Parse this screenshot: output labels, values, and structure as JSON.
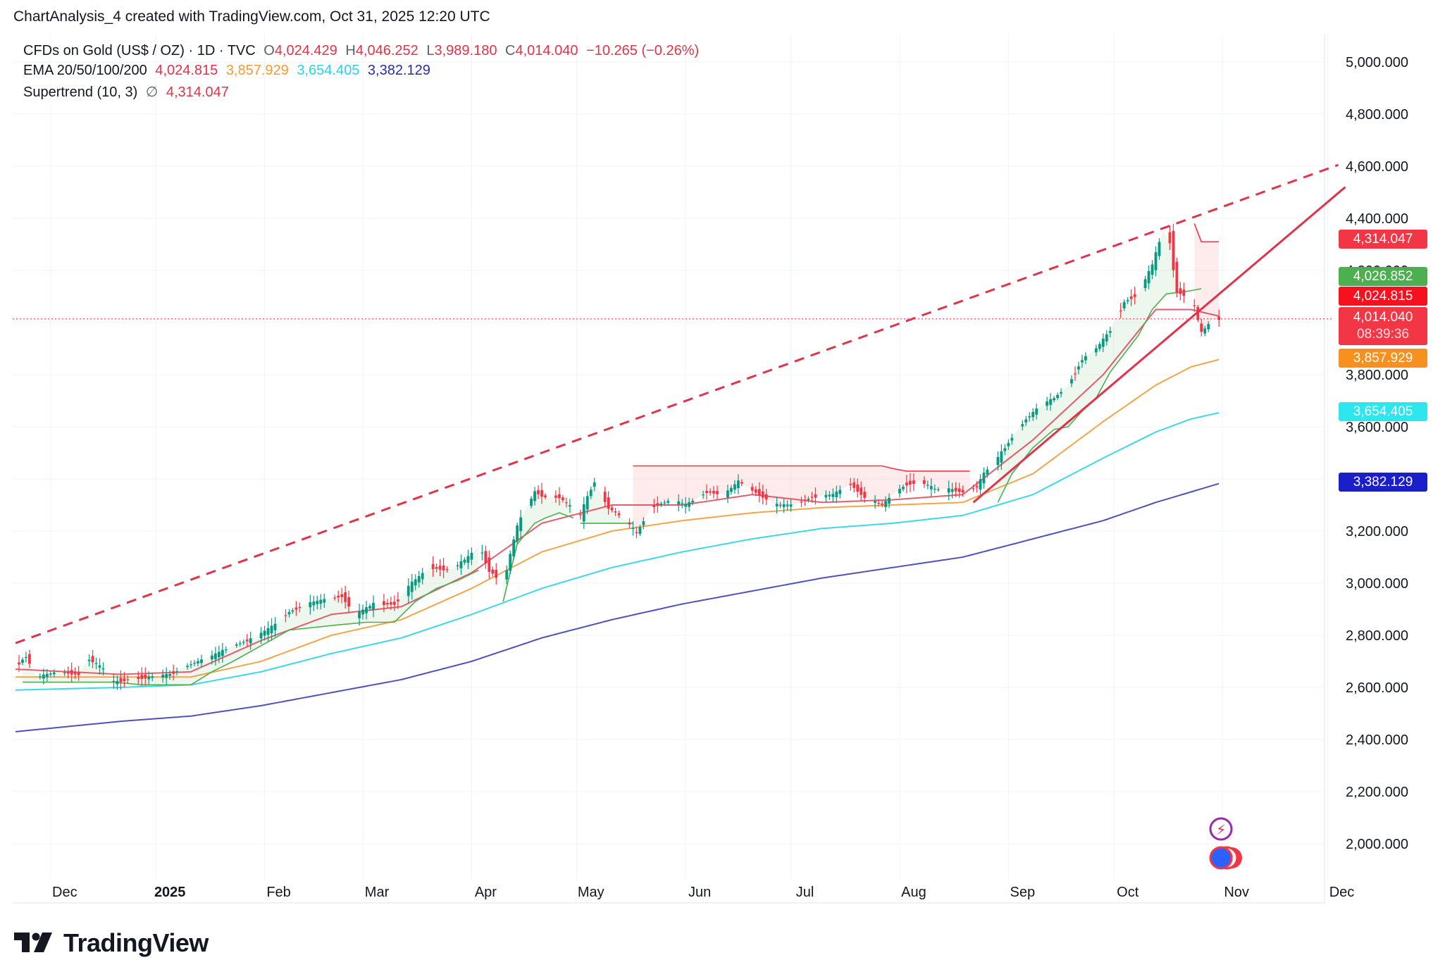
{
  "attribution": "ChartAnalysis_4 created with TradingView.com, Oct 31, 2025 12:20 UTC",
  "legend": {
    "symbol": "CFDs on Gold (US$ / OZ) · 1D · TVC",
    "open_label": "O",
    "open": "4,024.429",
    "high_label": "H",
    "high": "4,046.252",
    "low_label": "L",
    "low": "3,989.180",
    "close_label": "C",
    "close": "4,014.040",
    "change": "−10.265 (−0.26%)",
    "ema_label": "EMA 20/50/100/200",
    "ema20": "4,024.815",
    "ema50": "3,857.929",
    "ema100": "3,654.405",
    "ema200": "3,382.129",
    "supertrend_label": "Supertrend (10, 3)",
    "supertrend_icon": "∅",
    "supertrend_value": "4,314.047"
  },
  "price_badges": {
    "supertrend": "4,314.047",
    "ema20_upper": "4,026.852",
    "ema20": "4,024.815",
    "last_price": "4,014.040",
    "countdown": "08:39:36",
    "ema50": "3,857.929",
    "ema100": "3,654.405",
    "ema200": "3,382.129"
  },
  "colors": {
    "up": "#089981",
    "down": "#f23645",
    "ema20": "#e0344a",
    "ema50": "#f39b36",
    "ema100": "#28d4e4",
    "ema200": "#3b3fb5",
    "supertrend_up": "#4caf50",
    "supertrend_down": "#f23645"
  },
  "logo": {
    "text": "TradingView"
  },
  "chart_data": {
    "type": "candlestick",
    "title": "CFDs on Gold (US$ / OZ) · 1D · TVC",
    "ylim": [
      1850,
      5100
    ],
    "y_ticks": [
      "5,000.000",
      "4,800.000",
      "4,600.000",
      "4,400.000",
      "4,200.000",
      "4,000.000",
      "3,800.000",
      "3,600.000",
      "3,400.000",
      "3,200.000",
      "3,000.000",
      "2,800.000",
      "2,600.000",
      "2,400.000",
      "2,200.000",
      "2,000.000"
    ],
    "y_tick_values": [
      5000,
      4800,
      4600,
      4400,
      4200,
      4000,
      3800,
      3600,
      3400,
      3200,
      3000,
      2800,
      2600,
      2400,
      2200,
      2000
    ],
    "x_range_days": [
      0,
      375
    ],
    "x_ticks": [
      {
        "label": "Dec",
        "day": 10
      },
      {
        "label": "2025",
        "day": 40
      },
      {
        "label": "Feb",
        "day": 71
      },
      {
        "label": "Mar",
        "day": 99
      },
      {
        "label": "Apr",
        "day": 130
      },
      {
        "label": "May",
        "day": 160
      },
      {
        "label": "Jun",
        "day": 191
      },
      {
        "label": "Jul",
        "day": 221
      },
      {
        "label": "Aug",
        "day": 252
      },
      {
        "label": "Sep",
        "day": 283
      },
      {
        "label": "Oct",
        "day": 313
      },
      {
        "label": "Nov",
        "day": 344
      },
      {
        "label": "Dec",
        "day": 374
      }
    ],
    "price_anchors": [
      [
        0,
        2680
      ],
      [
        3,
        2720
      ],
      [
        6,
        2640
      ],
      [
        12,
        2660
      ],
      [
        18,
        2650
      ],
      [
        21,
        2710
      ],
      [
        25,
        2670
      ],
      [
        28,
        2620
      ],
      [
        32,
        2630
      ],
      [
        38,
        2640
      ],
      [
        44,
        2650
      ],
      [
        50,
        2690
      ],
      [
        56,
        2720
      ],
      [
        62,
        2760
      ],
      [
        68,
        2790
      ],
      [
        74,
        2840
      ],
      [
        78,
        2890
      ],
      [
        83,
        2920
      ],
      [
        89,
        2940
      ],
      [
        93,
        2950
      ],
      [
        97,
        2880
      ],
      [
        102,
        2920
      ],
      [
        108,
        2920
      ],
      [
        113,
        3000
      ],
      [
        118,
        3060
      ],
      [
        124,
        3050
      ],
      [
        129,
        3100
      ],
      [
        132,
        3140
      ],
      [
        135,
        3050
      ],
      [
        139,
        3000
      ],
      [
        143,
        3220
      ],
      [
        148,
        3350
      ],
      [
        151,
        3330
      ],
      [
        155,
        3330
      ],
      [
        161,
        3260
      ],
      [
        163,
        3330
      ],
      [
        165,
        3390
      ],
      [
        169,
        3290
      ],
      [
        174,
        3240
      ],
      [
        177,
        3190
      ],
      [
        181,
        3290
      ],
      [
        187,
        3320
      ],
      [
        191,
        3300
      ],
      [
        197,
        3350
      ],
      [
        202,
        3340
      ],
      [
        206,
        3390
      ],
      [
        212,
        3340
      ],
      [
        217,
        3300
      ],
      [
        222,
        3300
      ],
      [
        227,
        3330
      ],
      [
        233,
        3340
      ],
      [
        238,
        3380
      ],
      [
        242,
        3330
      ],
      [
        247,
        3300
      ],
      [
        251,
        3350
      ],
      [
        254,
        3380
      ],
      [
        258,
        3390
      ],
      [
        262,
        3360
      ],
      [
        266,
        3360
      ],
      [
        270,
        3350
      ],
      [
        274,
        3370
      ],
      [
        276,
        3420
      ],
      [
        280,
        3480
      ],
      [
        284,
        3560
      ],
      [
        288,
        3630
      ],
      [
        292,
        3680
      ],
      [
        296,
        3710
      ],
      [
        300,
        3760
      ],
      [
        304,
        3860
      ],
      [
        308,
        3900
      ],
      [
        312,
        3970
      ],
      [
        316,
        4080
      ],
      [
        320,
        4110
      ],
      [
        324,
        4220
      ],
      [
        327,
        4350
      ],
      [
        329,
        4310
      ],
      [
        331,
        4120
      ],
      [
        334,
        4100
      ],
      [
        336,
        4060
      ],
      [
        338,
        3960
      ],
      [
        341,
        4010
      ],
      [
        343,
        4014
      ]
    ],
    "ema_anchors": {
      "ema20": [
        [
          0,
          2670
        ],
        [
          30,
          2650
        ],
        [
          50,
          2660
        ],
        [
          70,
          2780
        ],
        [
          90,
          2880
        ],
        [
          110,
          2910
        ],
        [
          130,
          3040
        ],
        [
          150,
          3230
        ],
        [
          170,
          3300
        ],
        [
          190,
          3300
        ],
        [
          210,
          3340
        ],
        [
          230,
          3310
        ],
        [
          250,
          3320
        ],
        [
          270,
          3340
        ],
        [
          290,
          3550
        ],
        [
          310,
          3800
        ],
        [
          325,
          4050
        ],
        [
          335,
          4050
        ],
        [
          343,
          4025
        ]
      ],
      "ema50": [
        [
          0,
          2640
        ],
        [
          30,
          2640
        ],
        [
          50,
          2640
        ],
        [
          70,
          2700
        ],
        [
          90,
          2800
        ],
        [
          110,
          2860
        ],
        [
          130,
          2980
        ],
        [
          150,
          3120
        ],
        [
          170,
          3200
        ],
        [
          190,
          3240
        ],
        [
          210,
          3270
        ],
        [
          230,
          3290
        ],
        [
          250,
          3300
        ],
        [
          270,
          3310
        ],
        [
          290,
          3420
        ],
        [
          310,
          3620
        ],
        [
          325,
          3760
        ],
        [
          335,
          3830
        ],
        [
          343,
          3858
        ]
      ],
      "ema100": [
        [
          0,
          2590
        ],
        [
          30,
          2600
        ],
        [
          50,
          2610
        ],
        [
          70,
          2660
        ],
        [
          90,
          2730
        ],
        [
          110,
          2790
        ],
        [
          130,
          2880
        ],
        [
          150,
          2980
        ],
        [
          170,
          3060
        ],
        [
          190,
          3120
        ],
        [
          210,
          3170
        ],
        [
          230,
          3210
        ],
        [
          250,
          3230
        ],
        [
          270,
          3260
        ],
        [
          290,
          3340
        ],
        [
          310,
          3480
        ],
        [
          325,
          3580
        ],
        [
          335,
          3630
        ],
        [
          343,
          3654
        ]
      ],
      "ema200": [
        [
          0,
          2430
        ],
        [
          30,
          2470
        ],
        [
          50,
          2490
        ],
        [
          70,
          2530
        ],
        [
          90,
          2580
        ],
        [
          110,
          2630
        ],
        [
          130,
          2700
        ],
        [
          150,
          2790
        ],
        [
          170,
          2860
        ],
        [
          190,
          2920
        ],
        [
          210,
          2970
        ],
        [
          230,
          3020
        ],
        [
          250,
          3060
        ],
        [
          270,
          3100
        ],
        [
          290,
          3170
        ],
        [
          310,
          3240
        ],
        [
          325,
          3310
        ],
        [
          335,
          3350
        ],
        [
          343,
          3382
        ]
      ]
    },
    "supertrend_up_segments": [
      [
        [
          2,
          2620
        ],
        [
          28,
          2620
        ],
        [
          36,
          2610
        ],
        [
          50,
          2610
        ],
        [
          56,
          2660
        ],
        [
          62,
          2700
        ],
        [
          70,
          2760
        ],
        [
          78,
          2820
        ],
        [
          92,
          2840
        ],
        [
          100,
          2850
        ],
        [
          108,
          2850
        ],
        [
          114,
          2930
        ],
        [
          120,
          2980
        ],
        [
          126,
          3010
        ],
        [
          132,
          3050
        ]
      ],
      [
        [
          139,
          2930
        ],
        [
          143,
          3150
        ],
        [
          148,
          3230
        ],
        [
          151,
          3250
        ],
        [
          155,
          3270
        ],
        [
          159,
          3250
        ]
      ],
      [
        [
          161,
          3230
        ],
        [
          176,
          3230
        ]
      ],
      [
        [
          280,
          3310
        ],
        [
          284,
          3420
        ],
        [
          290,
          3520
        ],
        [
          296,
          3590
        ],
        [
          300,
          3600
        ],
        [
          304,
          3660
        ],
        [
          308,
          3710
        ],
        [
          312,
          3810
        ],
        [
          316,
          3880
        ],
        [
          320,
          3950
        ],
        [
          324,
          4050
        ],
        [
          328,
          4110
        ],
        [
          334,
          4120
        ],
        [
          338,
          4130
        ]
      ]
    ],
    "supertrend_down_segments": [
      [
        [
          176,
          3450
        ],
        [
          247,
          3450
        ],
        [
          250,
          3440
        ],
        [
          254,
          3430
        ],
        [
          272,
          3430
        ]
      ],
      [
        [
          336,
          4380
        ],
        [
          338,
          4310
        ],
        [
          343,
          4310
        ]
      ]
    ],
    "trendlines": [
      {
        "style": "dashed",
        "from": [
          0,
          2770
        ],
        "to": [
          377,
          4605
        ]
      },
      {
        "style": "solid",
        "from": [
          273,
          3310
        ],
        "to": [
          379,
          4520
        ]
      }
    ],
    "last_price": 4014.04,
    "ema_last": {
      "ema20": 4024.815,
      "ema50": 3857.929,
      "ema100": 3654.405,
      "ema200": 3382.129
    },
    "supertrend_last": 4314.047
  }
}
